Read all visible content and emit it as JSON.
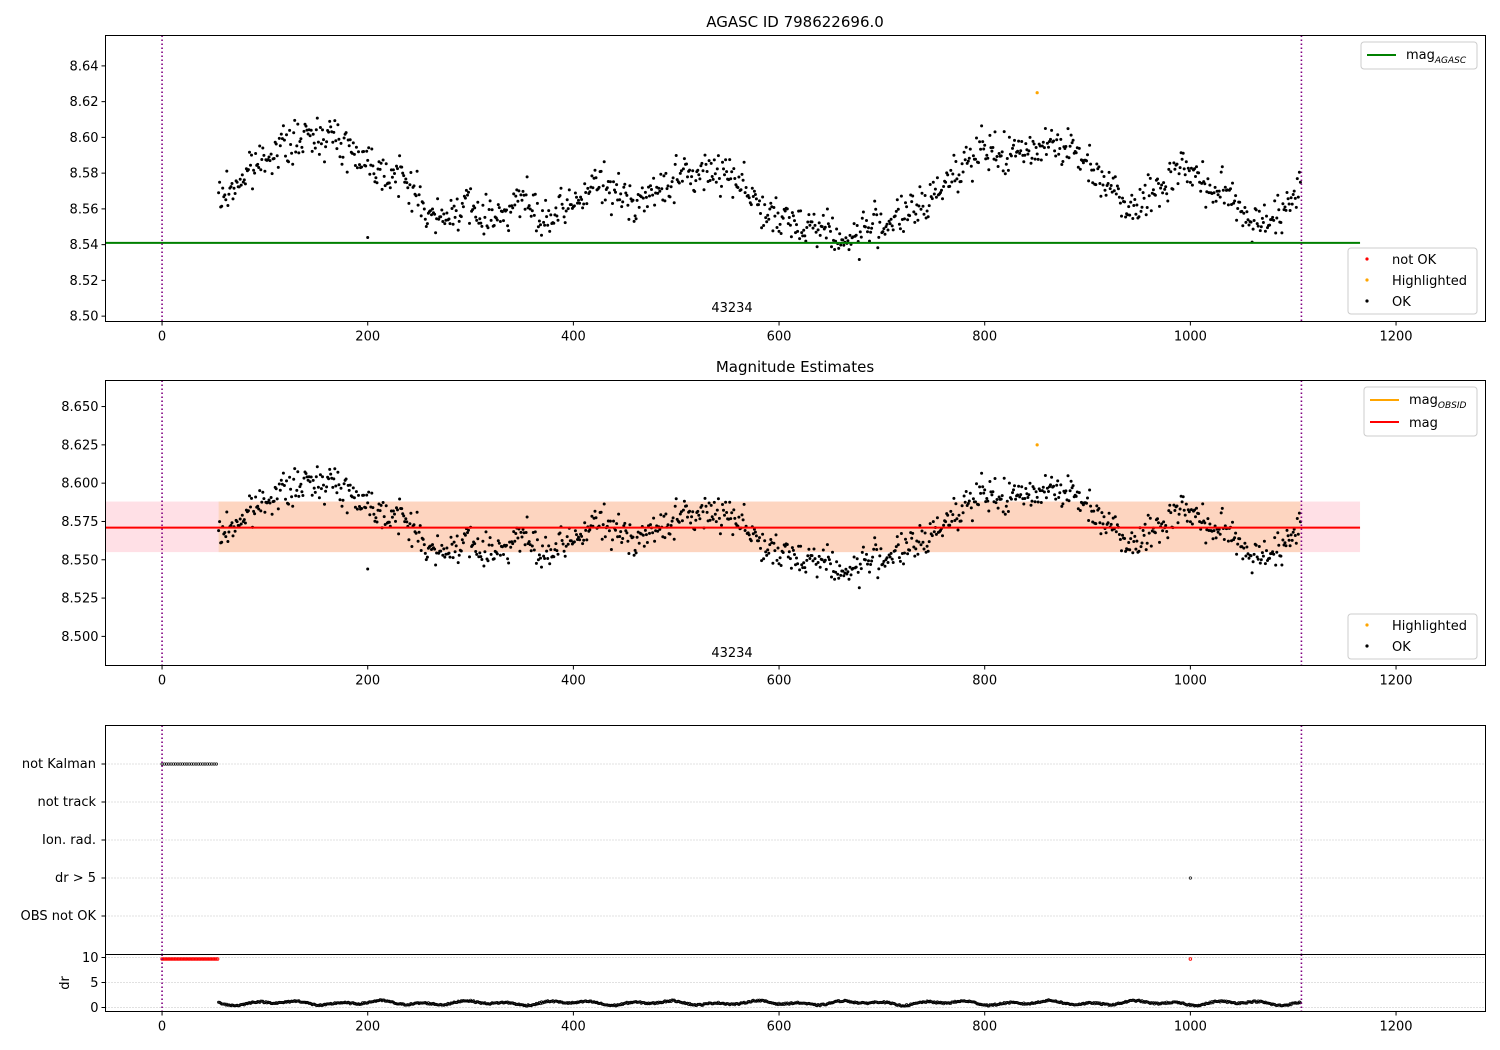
{
  "chart_data": [
    {
      "type": "scatter",
      "title": "AGASC ID 798622696.0",
      "xlim": [
        -55,
        1287
      ],
      "ylim": [
        8.497,
        8.657
      ],
      "x_ticks": [
        0,
        200,
        400,
        600,
        800,
        1000,
        1200
      ],
      "y_ticks": [
        8.5,
        8.52,
        8.54,
        8.56,
        8.58,
        8.6,
        8.62,
        8.64
      ],
      "y_tick_labels": [
        "8.50",
        "8.52",
        "8.54",
        "8.56",
        "8.58",
        "8.60",
        "8.62",
        "8.64"
      ],
      "obsid_label": "43234",
      "vlines": [
        0,
        1108
      ],
      "hline": {
        "name": "mag",
        "subscript": "AGASC",
        "y": 8.541,
        "x_range": [
          -55,
          1165
        ],
        "color": "#008000"
      },
      "legend_top": {
        "placement": "top-right",
        "entries": [
          {
            "label": "mag",
            "sub": "AGASC",
            "color": "#008000"
          }
        ]
      },
      "legend_bottom": {
        "placement": "lower-right",
        "entries": [
          {
            "label": "not OK",
            "color": "#ff0000"
          },
          {
            "label": "Highlighted",
            "color": "#ffa500"
          },
          {
            "label": "OK",
            "color": "#000000"
          }
        ]
      },
      "highlighted_points": [
        {
          "x": 851,
          "y": 8.625
        }
      ],
      "ok_series": {
        "x_start": 55,
        "x_end": 1107,
        "step": 1,
        "anchor_x": [
          55,
          80,
          105,
          130,
          158,
          180,
          200,
          220,
          240,
          260,
          275,
          290,
          310,
          330,
          350,
          370,
          390,
          410,
          425,
          440,
          460,
          480,
          500,
          515,
          540,
          560,
          575,
          590,
          610,
          630,
          650,
          665,
          680,
          700,
          720,
          740,
          760,
          780,
          800,
          820,
          840,
          860,
          880,
          900,
          920,
          940,
          960,
          975,
          990,
          1005,
          1020,
          1040,
          1060,
          1075,
          1090,
          1107
        ],
        "anchor_y": [
          8.565,
          8.578,
          8.592,
          8.597,
          8.603,
          8.595,
          8.587,
          8.58,
          8.575,
          8.556,
          8.553,
          8.563,
          8.556,
          8.558,
          8.566,
          8.552,
          8.558,
          8.568,
          8.575,
          8.568,
          8.565,
          8.568,
          8.578,
          8.578,
          8.582,
          8.578,
          8.567,
          8.555,
          8.552,
          8.552,
          8.548,
          8.54,
          8.548,
          8.552,
          8.556,
          8.56,
          8.575,
          8.586,
          8.592,
          8.59,
          8.592,
          8.598,
          8.595,
          8.585,
          8.575,
          8.562,
          8.567,
          8.573,
          8.586,
          8.578,
          8.57,
          8.568,
          8.552,
          8.556,
          8.555,
          8.574
        ]
      }
    },
    {
      "type": "scatter",
      "title": "Magnitude Estimates",
      "xlim": [
        -55,
        1287
      ],
      "ylim": [
        8.481,
        8.667
      ],
      "x_ticks": [
        0,
        200,
        400,
        600,
        800,
        1000,
        1200
      ],
      "y_ticks": [
        8.5,
        8.525,
        8.55,
        8.575,
        8.6,
        8.625,
        8.65
      ],
      "y_tick_labels": [
        "8.500",
        "8.525",
        "8.550",
        "8.575",
        "8.600",
        "8.625",
        "8.650"
      ],
      "obsid_label": "43234",
      "vlines": [
        0,
        1108
      ],
      "mag_line": {
        "name": "mag",
        "y": 8.571,
        "x_range": [
          -55,
          1165
        ],
        "color": "#ff0000",
        "band": [
          8.555,
          8.588
        ],
        "band_color": "#ffe0e6"
      },
      "mag_obsid": {
        "name": "mag",
        "subscript": "OBSID",
        "y": 8.571,
        "x_range": [
          55,
          1107
        ],
        "color": "#ffa500",
        "band": [
          8.555,
          8.588
        ],
        "band_color": "#fdd5c0"
      },
      "legend_top": {
        "placement": "top-right",
        "entries": [
          {
            "label": "mag",
            "sub": "OBSID",
            "color": "#ffa500"
          },
          {
            "label": "mag",
            "sub": "",
            "color": "#ff0000"
          }
        ]
      },
      "legend_bottom": {
        "placement": "lower-right",
        "entries": [
          {
            "label": "Highlighted",
            "color": "#ffa500"
          },
          {
            "label": "OK",
            "color": "#000000"
          }
        ]
      },
      "highlighted_points": [
        {
          "x": 851,
          "y": 8.625
        }
      ]
    },
    {
      "type": "scatter",
      "xlim": [
        -55,
        1287
      ],
      "x_ticks": [
        0,
        200,
        400,
        600,
        800,
        1000,
        1200
      ],
      "vlines": [
        0,
        1108
      ],
      "flag_rows": [
        "not Kalman",
        "not track",
        "Ion. rad.",
        "dr > 5",
        "OBS not OK"
      ],
      "flags": {
        "not Kalman": {
          "x_range": [
            0,
            54
          ],
          "step": 2.2
        },
        "dr > 5": {
          "points": [
            1000
          ]
        }
      }
    },
    {
      "type": "scatter",
      "ylabel": "dr",
      "xlim": [
        -55,
        1287
      ],
      "ylim": [
        -0.8,
        10.6
      ],
      "y_ticks": [
        0,
        5,
        10
      ],
      "y_tick_labels": [
        "0",
        "5",
        "10"
      ],
      "x_ticks": [
        0,
        200,
        400,
        600,
        800,
        1000,
        1200
      ],
      "x_tick_labels": [
        "0",
        "200",
        "400",
        "600",
        "800",
        "1000",
        "1200"
      ],
      "vlines": [
        0,
        1108
      ],
      "red_points": {
        "x_range": [
          0,
          54
        ],
        "step": 1.5,
        "y": 9.7,
        "extra": [
          {
            "x": 1000,
            "y": 9.7
          }
        ]
      },
      "dr_series": {
        "x_start": 55,
        "x_end": 1107,
        "mean": 0.9,
        "amplitude": 0.5
      }
    }
  ]
}
